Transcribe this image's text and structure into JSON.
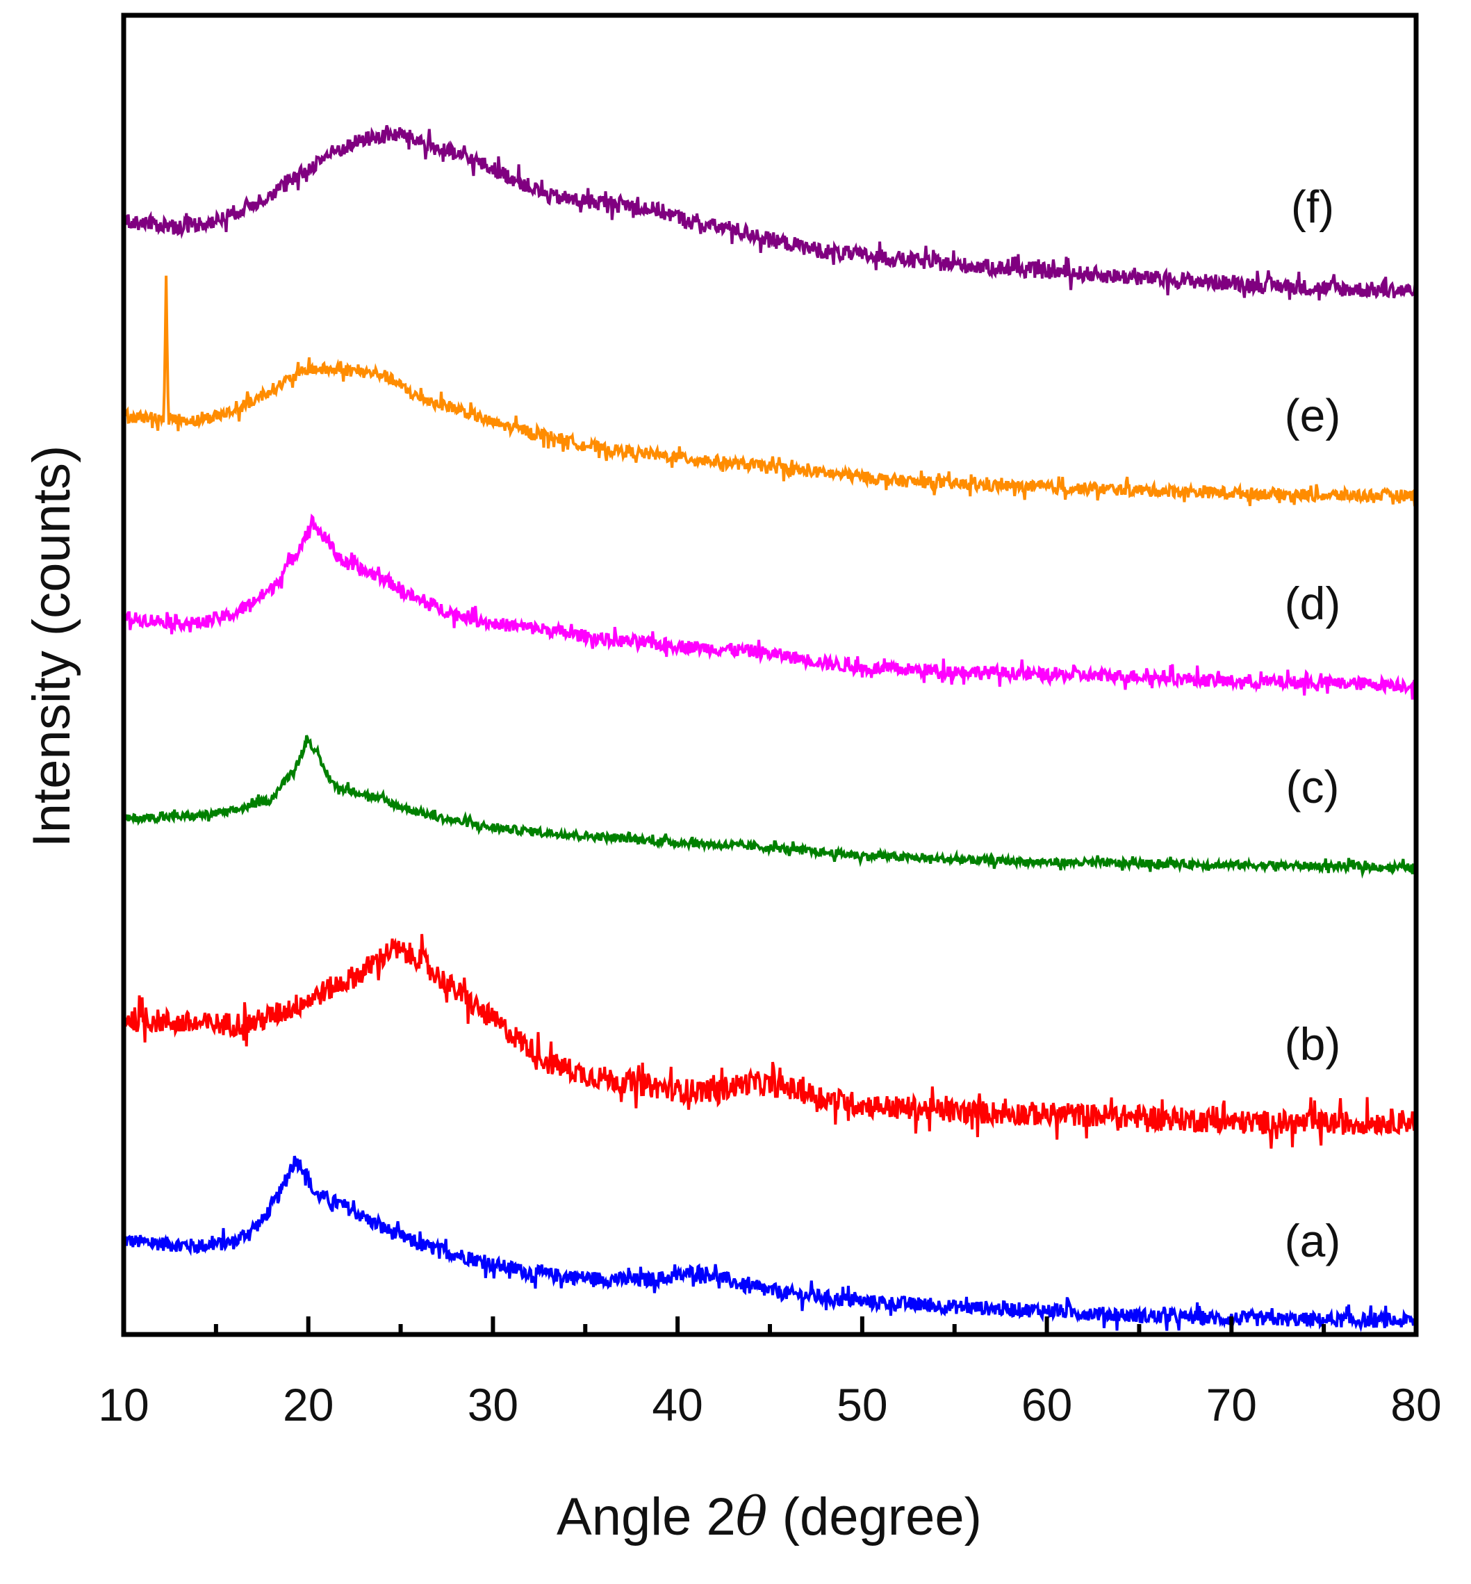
{
  "chart_data": {
    "type": "line",
    "title": "",
    "xlabel": "Angle 2θ (degree)",
    "xlabel_prefix": "Angle 2",
    "xlabel_symbol": "θ",
    "xlabel_suffix": " (degree)",
    "ylabel": "Intensity (counts)",
    "xlim": [
      10,
      80
    ],
    "ylim": [
      0,
      100
    ],
    "xticks": [
      "10",
      "20",
      "30",
      "40",
      "50",
      "60",
      "70",
      "80"
    ],
    "xtick_values": [
      10,
      20,
      30,
      40,
      50,
      60,
      70,
      80
    ],
    "minor_xtick_step": 5,
    "y_ticks_shown": false,
    "grid": false,
    "legend": "none (curves labelled at right)",
    "series": [
      {
        "name": "(a)",
        "color": "#0000ff",
        "noise": 1.1,
        "points": [
          [
            10,
            7.1
          ],
          [
            14,
            6.7
          ],
          [
            16,
            7.0
          ],
          [
            17.5,
            8.6
          ],
          [
            18.5,
            10.8
          ],
          [
            19.3,
            13.3
          ],
          [
            19.8,
            12.5
          ],
          [
            20.3,
            10.7
          ],
          [
            22,
            9.7
          ],
          [
            24,
            8.1
          ],
          [
            26,
            6.8
          ],
          [
            28,
            6.1
          ],
          [
            30,
            5.3
          ],
          [
            32,
            4.7
          ],
          [
            34,
            4.4
          ],
          [
            36,
            4.2
          ],
          [
            38,
            4.1
          ],
          [
            40,
            4.4
          ],
          [
            41,
            4.8
          ],
          [
            42,
            4.5
          ],
          [
            44,
            3.5
          ],
          [
            46,
            3.1
          ],
          [
            48,
            2.8
          ],
          [
            50,
            2.5
          ],
          [
            55,
            2.1
          ],
          [
            60,
            1.8
          ],
          [
            65,
            1.4
          ],
          [
            70,
            1.2
          ],
          [
            75,
            1.1
          ],
          [
            80,
            1.0
          ]
        ]
      },
      {
        "name": "(b)",
        "color": "#ff0000",
        "noise": 1.8,
        "points": [
          [
            10,
            24.0
          ],
          [
            14,
            23.5
          ],
          [
            17,
            23.6
          ],
          [
            19,
            24.7
          ],
          [
            21,
            26.1
          ],
          [
            23,
            27.5
          ],
          [
            24.5,
            29.2
          ],
          [
            26,
            28.6
          ],
          [
            27,
            27.2
          ],
          [
            29,
            24.9
          ],
          [
            31,
            22.8
          ],
          [
            33,
            20.6
          ],
          [
            35,
            19.7
          ],
          [
            37,
            19.2
          ],
          [
            40,
            18.5
          ],
          [
            42,
            18.5
          ],
          [
            44,
            19.1
          ],
          [
            46,
            18.7
          ],
          [
            48,
            17.9
          ],
          [
            50,
            17.4
          ],
          [
            55,
            16.9
          ],
          [
            60,
            16.7
          ],
          [
            65,
            16.5
          ],
          [
            70,
            16.1
          ],
          [
            75,
            16.0
          ],
          [
            80,
            16.2
          ]
        ]
      },
      {
        "name": "(c)",
        "color": "#008000",
        "noise": 0.6,
        "points": [
          [
            10,
            39.1
          ],
          [
            14,
            39.3
          ],
          [
            16,
            39.7
          ],
          [
            18,
            40.6
          ],
          [
            19.3,
            43.0
          ],
          [
            20.0,
            45.2
          ],
          [
            20.8,
            43.0
          ],
          [
            21.5,
            41.5
          ],
          [
            23,
            41.0
          ],
          [
            25,
            40.0
          ],
          [
            27,
            39.2
          ],
          [
            30,
            38.4
          ],
          [
            35,
            37.8
          ],
          [
            40,
            37.3
          ],
          [
            45,
            36.9
          ],
          [
            50,
            36.3
          ],
          [
            55,
            36.0
          ],
          [
            60,
            35.8
          ],
          [
            65,
            35.7
          ],
          [
            70,
            35.6
          ],
          [
            80,
            35.4
          ]
        ]
      },
      {
        "name": "(d)",
        "color": "#ff00ff",
        "noise": 1.0,
        "points": [
          [
            10,
            54.3
          ],
          [
            14,
            53.9
          ],
          [
            16,
            54.6
          ],
          [
            18,
            56.5
          ],
          [
            19.3,
            59.1
          ],
          [
            20.2,
            61.6
          ],
          [
            21,
            60.2
          ],
          [
            22,
            58.4
          ],
          [
            24,
            57.4
          ],
          [
            26,
            55.6
          ],
          [
            28,
            54.6
          ],
          [
            30,
            53.9
          ],
          [
            33,
            53.4
          ],
          [
            36,
            52.7
          ],
          [
            40,
            52.2
          ],
          [
            44,
            51.8
          ],
          [
            46,
            51.4
          ],
          [
            48,
            50.9
          ],
          [
            50,
            50.5
          ],
          [
            55,
            50.3
          ],
          [
            60,
            50.0
          ],
          [
            65,
            49.9
          ],
          [
            70,
            49.5
          ],
          [
            75,
            49.4
          ],
          [
            80,
            49.2
          ]
        ]
      },
      {
        "name": "(e)",
        "color": "#ff8c00",
        "noise": 0.9,
        "spike": {
          "x": 12.3,
          "height": 10.5
        },
        "points": [
          [
            10,
            69.6
          ],
          [
            14,
            69.3
          ],
          [
            16,
            70.0
          ],
          [
            18,
            71.6
          ],
          [
            20,
            73.2
          ],
          [
            22,
            73.1
          ],
          [
            24,
            72.8
          ],
          [
            26,
            71.0
          ],
          [
            28,
            70.2
          ],
          [
            30,
            69.1
          ],
          [
            33,
            68.1
          ],
          [
            36,
            67.1
          ],
          [
            40,
            66.5
          ],
          [
            44,
            65.9
          ],
          [
            48,
            65.3
          ],
          [
            52,
            64.7
          ],
          [
            56,
            64.4
          ],
          [
            60,
            64.2
          ],
          [
            65,
            64.0
          ],
          [
            70,
            63.8
          ],
          [
            75,
            63.6
          ],
          [
            80,
            63.6
          ]
        ]
      },
      {
        "name": "(f)",
        "color": "#800080",
        "noise": 1.2,
        "points": [
          [
            10,
            84.4
          ],
          [
            13,
            84.0
          ],
          [
            15,
            84.4
          ],
          [
            17,
            85.7
          ],
          [
            19,
            87.3
          ],
          [
            21,
            89.4
          ],
          [
            23,
            90.6
          ],
          [
            25,
            91.0
          ],
          [
            27,
            89.9
          ],
          [
            29,
            89.0
          ],
          [
            31,
            87.7
          ],
          [
            33,
            86.3
          ],
          [
            35,
            85.9
          ],
          [
            37,
            85.7
          ],
          [
            39,
            85.2
          ],
          [
            41,
            84.2
          ],
          [
            43,
            83.8
          ],
          [
            45,
            83.0
          ],
          [
            48,
            82.1
          ],
          [
            50,
            81.8
          ],
          [
            55,
            81.1
          ],
          [
            60,
            80.6
          ],
          [
            65,
            80.1
          ],
          [
            70,
            79.7
          ],
          [
            75,
            79.3
          ],
          [
            80,
            79.1
          ]
        ]
      }
    ]
  }
}
